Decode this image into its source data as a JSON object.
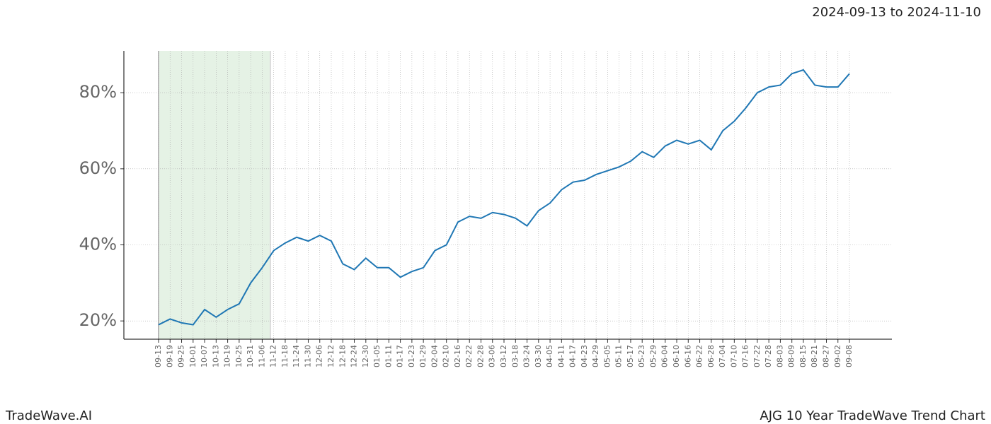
{
  "chart_data": {
    "type": "line",
    "title": "2024-09-13 to 2024-11-10",
    "footer_left": "TradeWave.AI",
    "footer_right": "AJG 10 Year TradeWave Trend Chart",
    "categories": [
      "09-13",
      "09-19",
      "09-25",
      "10-01",
      "10-07",
      "10-13",
      "10-19",
      "10-25",
      "10-31",
      "11-06",
      "11-12",
      "11-18",
      "11-24",
      "11-30",
      "12-06",
      "12-12",
      "12-18",
      "12-24",
      "12-30",
      "01-05",
      "01-11",
      "01-17",
      "01-23",
      "01-29",
      "02-04",
      "02-10",
      "02-16",
      "02-22",
      "02-28",
      "03-06",
      "03-12",
      "03-18",
      "03-24",
      "03-30",
      "04-05",
      "04-11",
      "04-17",
      "04-23",
      "04-29",
      "05-05",
      "05-11",
      "05-17",
      "05-23",
      "05-29",
      "06-04",
      "06-10",
      "06-16",
      "06-22",
      "06-28",
      "07-04",
      "07-10",
      "07-16",
      "07-22",
      "07-28",
      "08-03",
      "08-09",
      "08-15",
      "08-21",
      "08-27",
      "09-02",
      "09-08"
    ],
    "series": [
      {
        "name": "AJG",
        "color": "#1f77b4",
        "values": [
          19,
          20.5,
          19.5,
          19,
          23,
          21,
          23,
          24.5,
          30,
          34,
          38.5,
          40.5,
          42,
          41,
          42.5,
          41,
          35,
          33.5,
          36.5,
          34,
          34,
          31.5,
          33,
          34,
          38.5,
          40,
          46,
          47.5,
          47,
          48.5,
          48,
          47,
          45,
          49,
          51,
          54.5,
          56.5,
          57,
          58.5,
          59.5,
          60.5,
          62,
          64.5,
          63,
          66,
          67.5,
          66.5,
          67.5,
          65,
          70,
          72.5,
          76,
          80,
          81.5,
          82,
          85,
          86,
          82,
          81.5,
          81.5,
          85
        ]
      }
    ],
    "ylim": [
      15.2,
      91
    ],
    "yticks": [
      {
        "value": 20,
        "label": "20%"
      },
      {
        "value": 40,
        "label": "40%"
      },
      {
        "value": 60,
        "label": "60%"
      },
      {
        "value": 80,
        "label": "80%"
      }
    ],
    "grid": true,
    "highlight_color": "#e5f2e5"
  }
}
